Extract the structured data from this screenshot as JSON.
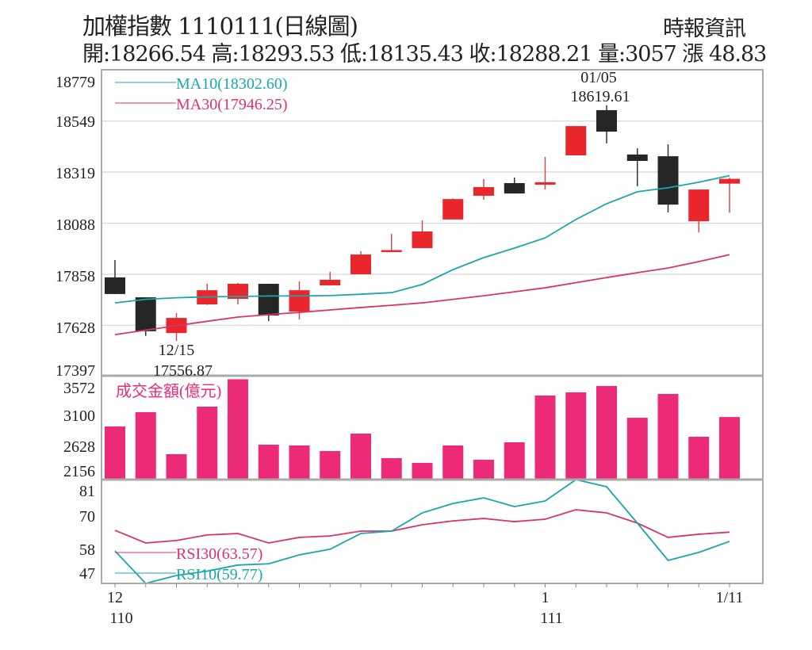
{
  "header": {
    "title": "加權指數 1110111(日線圖)",
    "source": "時報資訊",
    "stats": "開:18266.54 高:18293.53 低:18135.43 收:18288.21 量:3057 漲 48.83"
  },
  "colors": {
    "up": "#e8262c",
    "down": "#262626",
    "volume": "#ec2a78",
    "ma10": "#1ba6ad",
    "ma30": "#d9336e",
    "rsi30": "#d9336e",
    "rsi10": "#1ba6ad",
    "grid": "#dddddd",
    "border": "#aaaaaa"
  },
  "chart_data": [
    {
      "type": "candlestick",
      "yticks": [
        "18779",
        "18549",
        "18319",
        "18088",
        "17858",
        "17628",
        "17397"
      ],
      "ylim": [
        17397,
        18779
      ],
      "grid": true,
      "annotations": [
        {
          "date": "12/15",
          "value": "17556.87",
          "candle_index": 2
        },
        {
          "date": "01/05",
          "value": "18619.61",
          "candle_index": 16
        }
      ],
      "legend": [
        {
          "label": "MA10(18302.60)",
          "series": "ma10"
        },
        {
          "label": "MA30(17946.25)",
          "series": "ma30"
        }
      ],
      "candles": [
        {
          "o": 17844,
          "h": 17922,
          "l": 17769,
          "c": 17769
        },
        {
          "o": 17754,
          "h": 17754,
          "l": 17580,
          "c": 17601
        },
        {
          "o": 17593,
          "h": 17683,
          "l": 17556.87,
          "c": 17661
        },
        {
          "o": 17722,
          "h": 17815,
          "l": 17720,
          "c": 17786
        },
        {
          "o": 17747,
          "h": 17819,
          "l": 17722,
          "c": 17815
        },
        {
          "o": 17815,
          "h": 17815,
          "l": 17647,
          "c": 17672
        },
        {
          "o": 17690,
          "h": 17826,
          "l": 17654,
          "c": 17786
        },
        {
          "o": 17808,
          "h": 17869,
          "l": 17808,
          "c": 17833
        },
        {
          "o": 17858,
          "h": 17962,
          "l": 17858,
          "c": 17947
        },
        {
          "o": 17963,
          "h": 18040,
          "l": 17962,
          "c": 17967
        },
        {
          "o": 17976,
          "h": 18101,
          "l": 17976,
          "c": 18051
        },
        {
          "o": 18105,
          "h": 18200,
          "l": 18105,
          "c": 18197
        },
        {
          "o": 18212,
          "h": 18287,
          "l": 18194,
          "c": 18251
        },
        {
          "o": 18269,
          "h": 18294,
          "l": 18222,
          "c": 18222
        },
        {
          "o": 18262,
          "h": 18387,
          "l": 18240,
          "c": 18273
        },
        {
          "o": 18394,
          "h": 18526,
          "l": 18394,
          "c": 18526
        },
        {
          "o": 18598,
          "h": 18619.61,
          "l": 18448,
          "c": 18501
        },
        {
          "o": 18398,
          "h": 18426,
          "l": 18255,
          "c": 18369
        },
        {
          "o": 18390,
          "h": 18444,
          "l": 18137,
          "c": 18172
        },
        {
          "o": 18097,
          "h": 18240,
          "l": 18047,
          "c": 18240
        },
        {
          "o": 18266.54,
          "h": 18293.53,
          "l": 18135.43,
          "c": 18288.21
        }
      ],
      "ma10": [
        17729,
        17745,
        17752,
        17756,
        17758,
        17760,
        17760,
        17762,
        17768,
        17775,
        17812,
        17879,
        17933,
        17976,
        18022,
        18105,
        18176,
        18230,
        18248,
        18273,
        18302.6
      ],
      "ma30": [
        17586,
        17606,
        17626,
        17646,
        17665,
        17676,
        17686,
        17697,
        17708,
        17718,
        17729,
        17745,
        17761,
        17779,
        17797,
        17820,
        17843,
        17865,
        17886,
        17915,
        17946.25
      ]
    },
    {
      "type": "bar",
      "label": "成交金額(億元)",
      "yticks": [
        "3572",
        "3100",
        "2628",
        "2156"
      ],
      "values": [
        2897,
        3140,
        2426,
        3234,
        3700,
        2587,
        2574,
        2479,
        2776,
        2358,
        2277,
        2574,
        2331,
        2628,
        3423,
        3477,
        3585,
        3045,
        3450,
        2722,
        3057
      ]
    },
    {
      "type": "line",
      "yticks": [
        "81",
        "70",
        "58",
        "47"
      ],
      "legend": [
        {
          "label": "RSI30(63.57)",
          "series": "rsi30"
        },
        {
          "label": "RSI10(59.77)",
          "series": "rsi10"
        }
      ],
      "series": [
        {
          "name": "RSI30",
          "values": [
            64.3,
            59.1,
            60.1,
            62.4,
            63.0,
            59.1,
            61.4,
            62.0,
            64.0,
            64.0,
            66.6,
            68.2,
            69.2,
            67.9,
            68.9,
            72.8,
            71.5,
            67.3,
            61.4,
            62.7,
            63.57
          ]
        },
        {
          "name": "RSI10",
          "values": [
            55.8,
            42.1,
            45.7,
            47.5,
            50.0,
            50.5,
            54.2,
            56.5,
            63.0,
            64.0,
            71.5,
            75.4,
            77.7,
            74.1,
            76.4,
            85.2,
            82.3,
            67.3,
            51.9,
            55.2,
            59.77
          ]
        }
      ],
      "xticks": [
        {
          "index": 0,
          "line1": "12",
          "line2": "110"
        },
        {
          "index": 14,
          "line1": "1",
          "line2": "111"
        },
        {
          "index": 20,
          "line1": "1/11",
          "line2": ""
        }
      ]
    }
  ]
}
